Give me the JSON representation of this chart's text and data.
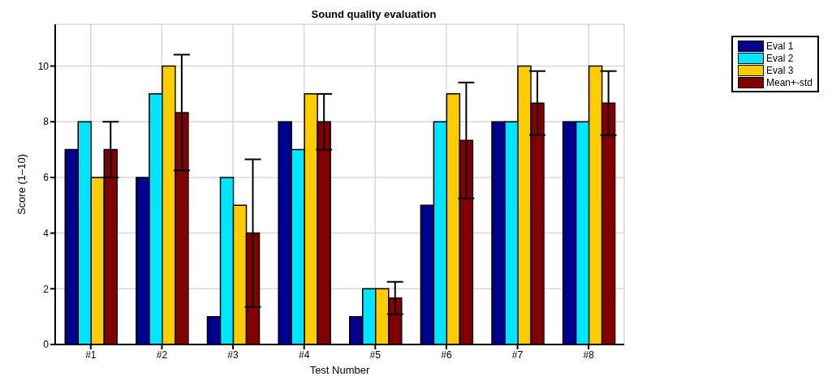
{
  "chart_data": {
    "type": "bar",
    "title": "Sound quality evaluation",
    "xlabel": "Test Number",
    "ylabel": "Score (1–10)",
    "categories": [
      "#1",
      "#2",
      "#3",
      "#4",
      "#5",
      "#6",
      "#7",
      "#8"
    ],
    "series": [
      {
        "name": "Eval 1",
        "color": "#00008f",
        "values": [
          7,
          6,
          1,
          8,
          1,
          5,
          8,
          8
        ]
      },
      {
        "name": "Eval 2",
        "color": "#00e5ff",
        "values": [
          8,
          9,
          6,
          7,
          2,
          8,
          8,
          8
        ]
      },
      {
        "name": "Eval 3",
        "color": "#ffcc00",
        "values": [
          6,
          10,
          5,
          9,
          2,
          9,
          10,
          10
        ]
      },
      {
        "name": "Mean+-std",
        "color": "#800000",
        "values": [
          7,
          8.33,
          4,
          8,
          1.67,
          7.33,
          8.67,
          8.67
        ],
        "errors": [
          1,
          2.08,
          2.65,
          1,
          0.58,
          2.08,
          1.15,
          1.15
        ]
      }
    ],
    "ylim": [
      0,
      11.5
    ],
    "yticks": [
      0,
      2,
      4,
      6,
      8,
      10
    ],
    "grid": true,
    "legend": "top right"
  }
}
